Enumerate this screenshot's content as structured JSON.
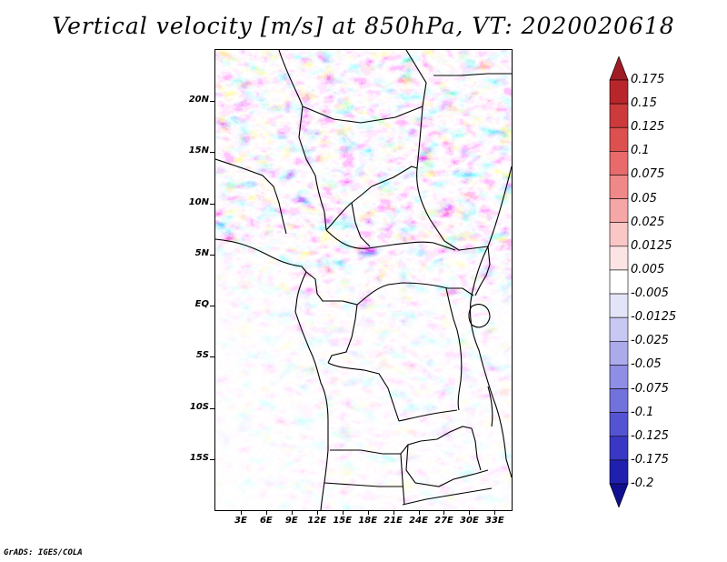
{
  "title": "Vertical velocity [m/s] at 850hPa, VT: 2020020618",
  "credit": "GrADS: IGES/COLA",
  "map": {
    "lon_range": [
      0,
      35
    ],
    "lat_range": [
      -20,
      25
    ],
    "lat_ticks": [
      {
        "value": 20,
        "label": "20N"
      },
      {
        "value": 15,
        "label": "15N"
      },
      {
        "value": 10,
        "label": "10N"
      },
      {
        "value": 5,
        "label": "5N"
      },
      {
        "value": 0,
        "label": "EQ"
      },
      {
        "value": -5,
        "label": "5S"
      },
      {
        "value": -10,
        "label": "10S"
      },
      {
        "value": -15,
        "label": "15S"
      }
    ],
    "lon_ticks": [
      {
        "value": 3,
        "label": "3E"
      },
      {
        "value": 6,
        "label": "6E"
      },
      {
        "value": 9,
        "label": "9E"
      },
      {
        "value": 12,
        "label": "12E"
      },
      {
        "value": 15,
        "label": "15E"
      },
      {
        "value": 18,
        "label": "18E"
      },
      {
        "value": 21,
        "label": "21E"
      },
      {
        "value": 24,
        "label": "24E"
      },
      {
        "value": 27,
        "label": "27E"
      },
      {
        "value": 30,
        "label": "30E"
      },
      {
        "value": 33,
        "label": "33E"
      }
    ]
  },
  "colorbar": {
    "labels": [
      "0.175",
      "0.15",
      "0.125",
      "0.1",
      "0.075",
      "0.05",
      "0.025",
      "0.0125",
      "0.005",
      "-0.005",
      "-0.0125",
      "-0.025",
      "-0.05",
      "-0.075",
      "-0.1",
      "-0.125",
      "-0.175",
      "-0.2"
    ],
    "colors": [
      "#a01c24",
      "#b8262c",
      "#cc3a3c",
      "#dc5050",
      "#e86a6a",
      "#ef8888",
      "#f5a6a6",
      "#fac6c6",
      "#fde4e4",
      "#ffffff",
      "#e4e4f8",
      "#c8c8f2",
      "#ababec",
      "#8e8ee4",
      "#7272dc",
      "#5454d2",
      "#3838c4",
      "#2020ae",
      "#10108e"
    ]
  }
}
